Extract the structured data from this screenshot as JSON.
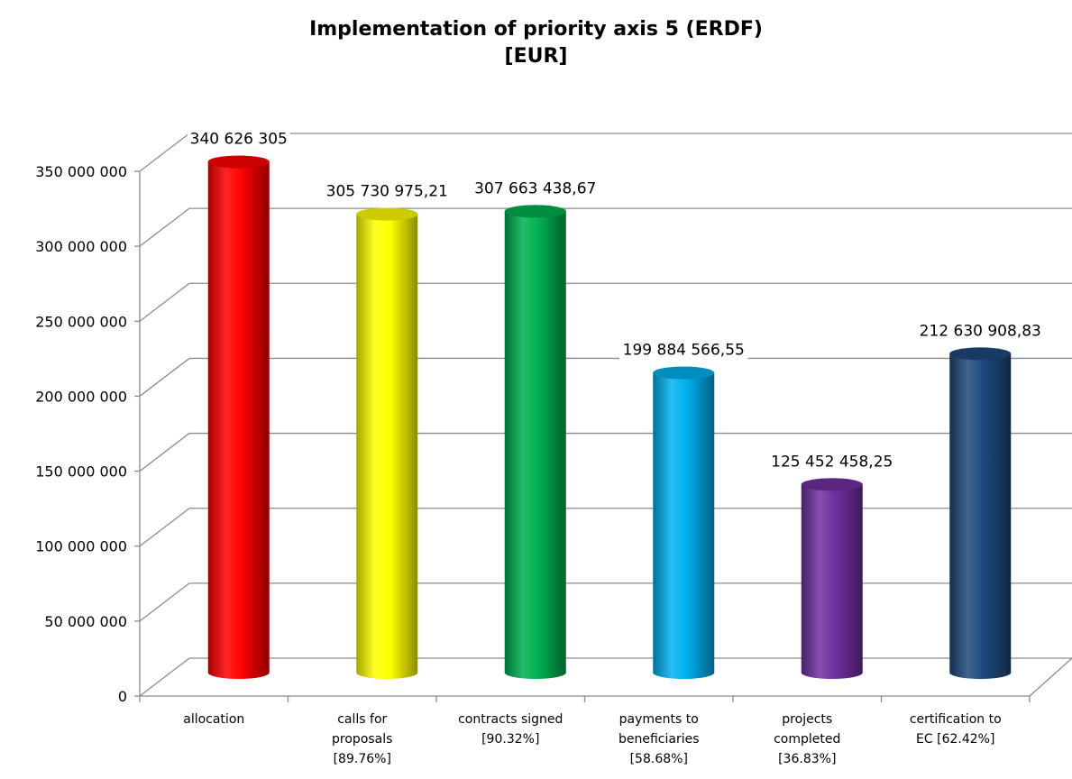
{
  "chart_data": {
    "type": "bar",
    "title": "Implementation of priority axis 5 (ERDF)",
    "subtitle": "[EUR]",
    "xlabel": "",
    "ylabel": "",
    "ylim": [
      0,
      350000000
    ],
    "y_ticks": [
      0,
      50000000,
      100000000,
      150000000,
      200000000,
      250000000,
      300000000,
      350000000
    ],
    "y_tick_labels": [
      "0",
      "50 000 000",
      "100 000 000",
      "150 000 000",
      "200 000 000",
      "250 000 000",
      "300 000 000",
      "350 000 000"
    ],
    "grid": true,
    "legend": "none",
    "categories": [
      [
        "allocation"
      ],
      [
        "calls for",
        "proposals",
        "[89.76%]"
      ],
      [
        "contracts signed",
        "[90.32%]"
      ],
      [
        "payments to",
        "beneficiaries",
        "[58.68%]"
      ],
      [
        "projects",
        "completed",
        "[36.83%]"
      ],
      [
        "certification to",
        "EC [62.42%]"
      ]
    ],
    "values": [
      340626305,
      305730975.21,
      307663438.67,
      199884566.55,
      125452458.25,
      212630908.83
    ],
    "data_labels": [
      "340 626 305",
      "305 730 975,21",
      "307 663 438,67",
      "199 884 566,55",
      "125 452 458,25",
      "212 630 908,83"
    ],
    "colors": [
      "#ff0000",
      "#ffff00",
      "#00b050",
      "#00b0f0",
      "#7030a0",
      "#1f497d"
    ]
  }
}
